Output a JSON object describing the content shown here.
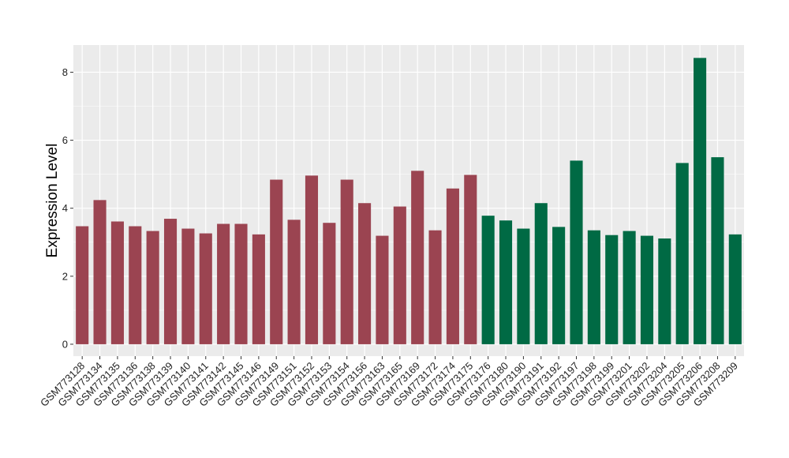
{
  "chart_data": {
    "type": "bar",
    "title": "",
    "xlabel": "",
    "ylabel": "Expression Level",
    "ylim": [
      -0.35,
      8.8
    ],
    "yticks": [
      0,
      2,
      4,
      6,
      8
    ],
    "grid": true,
    "legend": "none",
    "categories": [
      "GSM773128",
      "GSM773134",
      "GSM773135",
      "GSM773136",
      "GSM773138",
      "GSM773139",
      "GSM773140",
      "GSM773141",
      "GSM773142",
      "GSM773145",
      "GSM773146",
      "GSM773149",
      "GSM773151",
      "GSM773152",
      "GSM773153",
      "GSM773154",
      "GSM773156",
      "GSM773163",
      "GSM773165",
      "GSM773169",
      "GSM773172",
      "GSM773174",
      "GSM773175",
      "GSM773176",
      "GSM773180",
      "GSM773190",
      "GSM773191",
      "GSM773192",
      "GSM773197",
      "GSM773198",
      "GSM773199",
      "GSM773201",
      "GSM773202",
      "GSM773204",
      "GSM773205",
      "GSM773206",
      "GSM773208",
      "GSM773209"
    ],
    "values": [
      3.47,
      4.24,
      3.61,
      3.47,
      3.33,
      3.69,
      3.4,
      3.26,
      3.54,
      3.54,
      3.23,
      4.84,
      3.66,
      4.96,
      3.57,
      4.84,
      4.15,
      3.19,
      4.05,
      5.1,
      3.35,
      4.58,
      4.98,
      3.78,
      3.64,
      3.4,
      4.15,
      3.45,
      5.4,
      3.35,
      3.21,
      3.33,
      3.19,
      3.11,
      5.33,
      8.42,
      5.5,
      3.23
    ],
    "group_of_bar": [
      0,
      0,
      0,
      0,
      0,
      0,
      0,
      0,
      0,
      0,
      0,
      0,
      0,
      0,
      0,
      0,
      0,
      0,
      0,
      0,
      0,
      0,
      0,
      1,
      1,
      1,
      1,
      1,
      1,
      1,
      1,
      1,
      1,
      1,
      1,
      1,
      1,
      1
    ],
    "group_colors": [
      "#9b4451",
      "#006a44"
    ],
    "panel_background": "#ebebeb",
    "grid_color": "#ffffff"
  }
}
